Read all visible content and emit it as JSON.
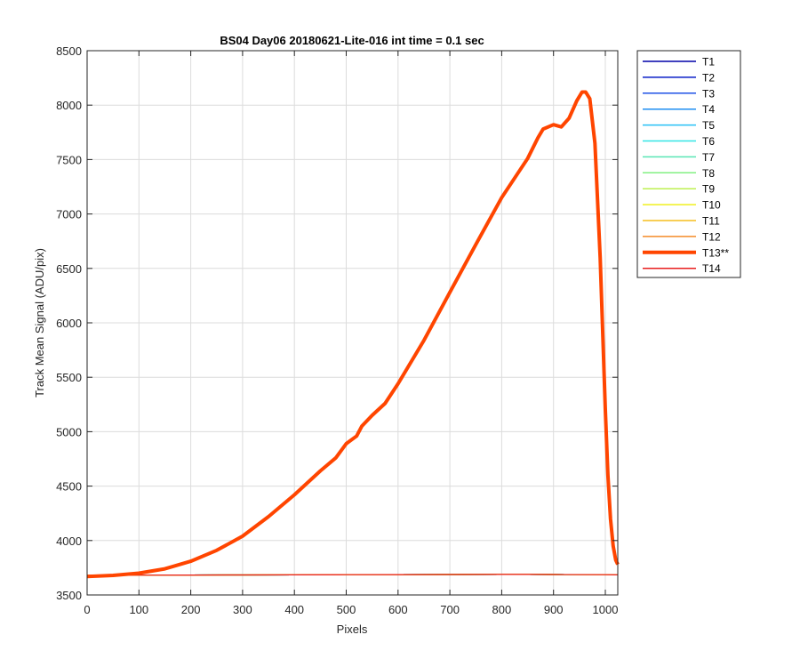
{
  "chart_data": {
    "type": "line",
    "title": "BS04 Day06 20180621-Lite-016 int time = 0.1 sec",
    "xlabel": "Pixels",
    "ylabel": "Track Mean Signal (ADU/pix)",
    "xlim": [
      0,
      1024
    ],
    "ylim": [
      3500,
      8500
    ],
    "x_ticks": [
      0,
      100,
      200,
      300,
      400,
      500,
      600,
      700,
      800,
      900,
      1000
    ],
    "y_ticks": [
      3500,
      4000,
      4500,
      5000,
      5500,
      6000,
      6500,
      7000,
      7500,
      8000,
      8500
    ],
    "grid": true,
    "legend_position": "outside-right",
    "highlighted_series": "T13**",
    "baseline_x": [
      0,
      100,
      200,
      300,
      400,
      500,
      600,
      700,
      800,
      850,
      900,
      1000,
      1024
    ],
    "series": [
      {
        "name": "T1",
        "color": "#0000a8",
        "y": [
          3680,
          3682,
          3683,
          3684,
          3685,
          3686,
          3687,
          3688,
          3689,
          3689,
          3688,
          3686,
          3685
        ]
      },
      {
        "name": "T2",
        "color": "#0a1ec8",
        "y": [
          3680,
          3682,
          3683,
          3684,
          3685,
          3686,
          3687,
          3688,
          3689,
          3689,
          3688,
          3686,
          3685
        ]
      },
      {
        "name": "T3",
        "color": "#1e50e6",
        "y": [
          3680,
          3682,
          3683,
          3684,
          3685,
          3686,
          3687,
          3688,
          3689,
          3689,
          3688,
          3686,
          3685
        ]
      },
      {
        "name": "T4",
        "color": "#1e8ef2",
        "y": [
          3680,
          3682,
          3683,
          3684,
          3685,
          3686,
          3687,
          3688,
          3689,
          3689,
          3688,
          3686,
          3685
        ]
      },
      {
        "name": "T5",
        "color": "#28c0f5",
        "y": [
          3680,
          3682,
          3683,
          3684,
          3685,
          3686,
          3687,
          3688,
          3689,
          3689,
          3688,
          3686,
          3685
        ]
      },
      {
        "name": "T6",
        "color": "#32e6e6",
        "y": [
          3680,
          3682,
          3683,
          3684,
          3685,
          3686,
          3687,
          3688,
          3689,
          3689,
          3688,
          3686,
          3685
        ]
      },
      {
        "name": "T7",
        "color": "#5ae6b4",
        "y": [
          3680,
          3682,
          3683,
          3684,
          3685,
          3686,
          3687,
          3688,
          3689,
          3689,
          3688,
          3686,
          3685
        ]
      },
      {
        "name": "T8",
        "color": "#82f082",
        "y": [
          3680,
          3682,
          3683,
          3684,
          3685,
          3686,
          3687,
          3688,
          3689,
          3689,
          3688,
          3686,
          3685
        ]
      },
      {
        "name": "T9",
        "color": "#bef050",
        "y": [
          3680,
          3682,
          3683,
          3684,
          3685,
          3686,
          3687,
          3688,
          3689,
          3689,
          3688,
          3686,
          3685
        ]
      },
      {
        "name": "T10",
        "color": "#f0f01e",
        "y": [
          3680,
          3682,
          3683,
          3684,
          3685,
          3686,
          3687,
          3688,
          3689,
          3689,
          3688,
          3686,
          3685
        ]
      },
      {
        "name": "T11",
        "color": "#f5be1e",
        "y": [
          3680,
          3682,
          3683,
          3684,
          3685,
          3686,
          3687,
          3688,
          3689,
          3689,
          3688,
          3686,
          3685
        ]
      },
      {
        "name": "T12",
        "color": "#f58c28",
        "y": [
          3680,
          3682,
          3683,
          3684,
          3685,
          3686,
          3687,
          3688,
          3689,
          3689,
          3688,
          3686,
          3685
        ]
      },
      {
        "name": "T14",
        "color": "#e81e1e",
        "y": [
          3680,
          3682,
          3683,
          3684,
          3685,
          3686,
          3687,
          3688,
          3689,
          3689,
          3688,
          3686,
          3685
        ]
      },
      {
        "name": "T13**",
        "color": "#ff4500",
        "bold": true,
        "x": [
          0,
          50,
          100,
          150,
          200,
          250,
          300,
          350,
          400,
          450,
          480,
          500,
          520,
          530,
          550,
          575,
          600,
          650,
          700,
          750,
          800,
          850,
          870,
          880,
          900,
          915,
          930,
          945,
          955,
          962,
          970,
          980,
          990,
          1000,
          1005,
          1010,
          1015,
          1020,
          1024
        ],
        "y": [
          3670,
          3680,
          3700,
          3740,
          3810,
          3910,
          4040,
          4220,
          4420,
          4640,
          4760,
          4890,
          4960,
          5050,
          5150,
          5260,
          5440,
          5840,
          6280,
          6720,
          7150,
          7510,
          7700,
          7780,
          7820,
          7800,
          7880,
          8040,
          8120,
          8120,
          8060,
          7650,
          6600,
          5200,
          4600,
          4200,
          3950,
          3820,
          3780
        ]
      }
    ]
  }
}
